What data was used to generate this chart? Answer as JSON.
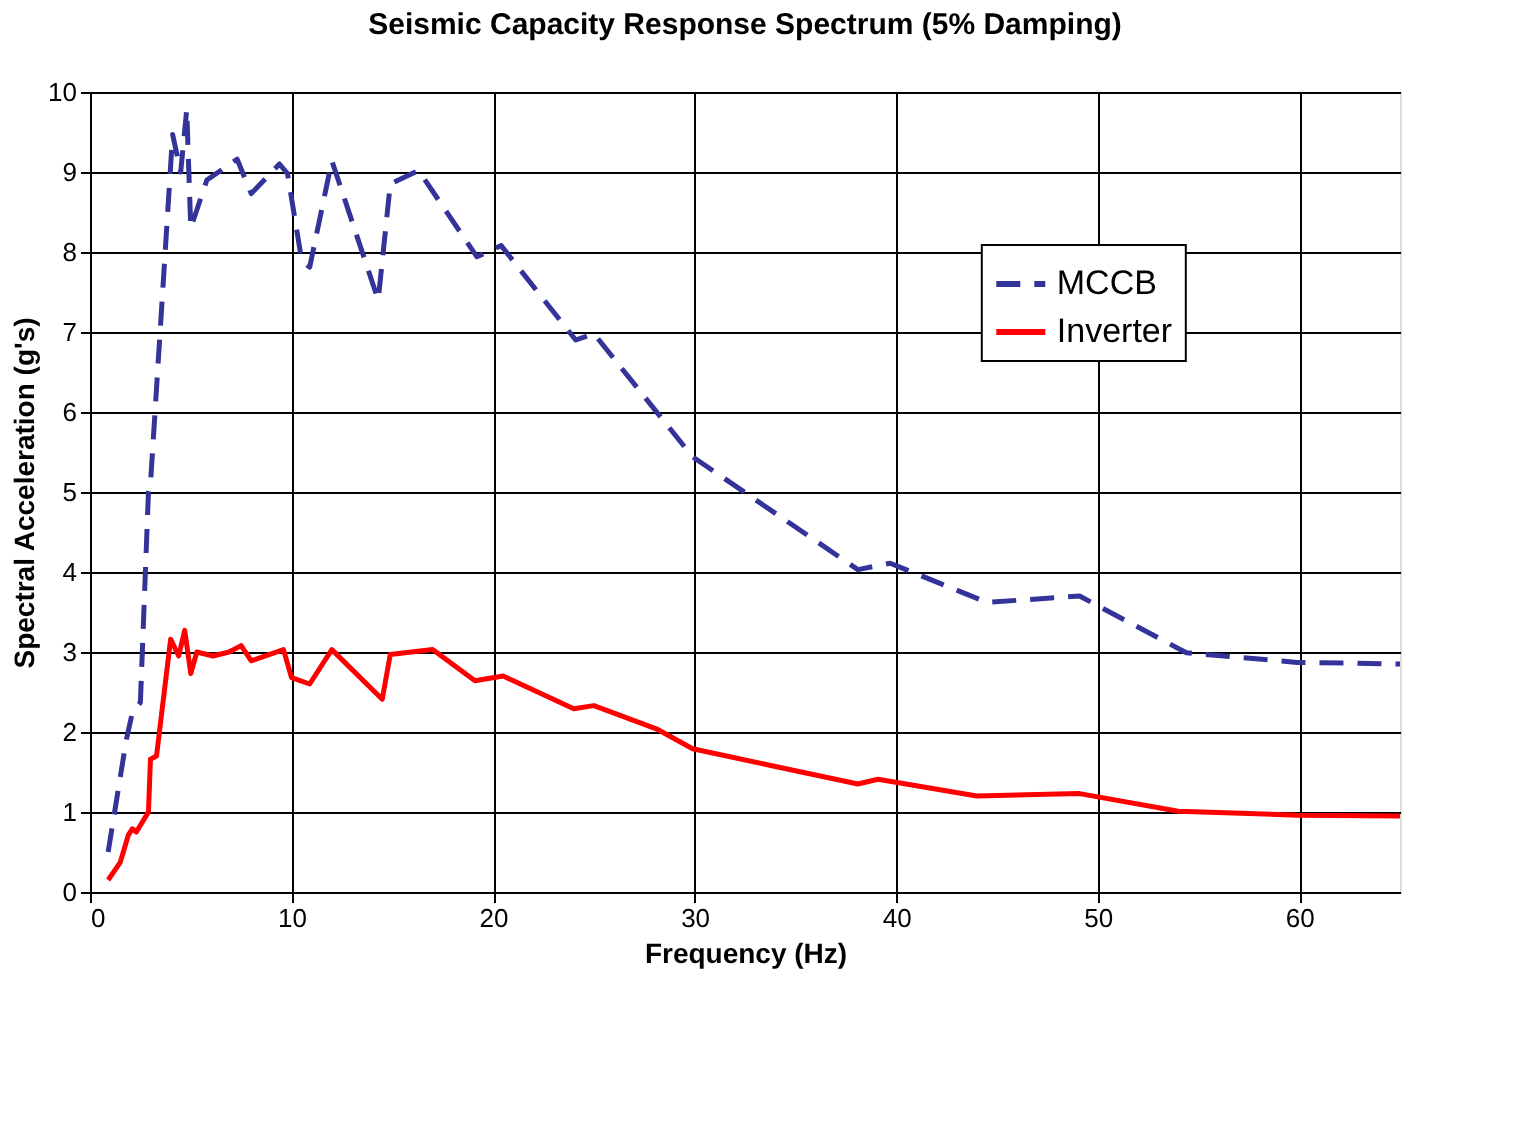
{
  "chart_data": {
    "type": "line",
    "title": "Seismic Capacity Response Spectrum (5% Damping)",
    "xlabel": "Frequency (Hz)",
    "ylabel": "Spectral Acceleration (g's)",
    "xlim": [
      0,
      65
    ],
    "xticks": [
      0,
      10,
      20,
      30,
      40,
      50,
      60
    ],
    "ylim": [
      0,
      10
    ],
    "yticks": [
      0,
      1,
      2,
      3,
      4,
      5,
      6,
      7,
      8,
      9,
      10
    ],
    "grid": true,
    "legend": "right",
    "marker": "none",
    "series": [
      {
        "name": "MCCB",
        "color": "#333399",
        "line_style": "dashed",
        "x": [
          0.9,
          1.8,
          2.1,
          2.5,
          2.9,
          3.0,
          4.1,
          4.5,
          4.8,
          5.0,
          5.8,
          7.3,
          8.0,
          9.4,
          9.8,
          10.5,
          10.9,
          12.0,
          14.3,
          14.9,
          16.3,
          19.2,
          20.4,
          24.1,
          25.0,
          29.9,
          38.1,
          39.7,
          44.5,
          49.1,
          54.4,
          59.9,
          65
        ],
        "values": [
          0.5,
          1.9,
          2.24,
          2.37,
          5.0,
          5.1,
          9.47,
          9.0,
          9.78,
          8.3,
          8.9,
          9.16,
          8.73,
          9.1,
          8.98,
          7.9,
          7.81,
          9.14,
          7.4,
          8.85,
          9.02,
          7.94,
          8.08,
          6.9,
          6.98,
          5.44,
          4.03,
          4.11,
          3.62,
          3.7,
          2.99,
          2.87,
          2.85
        ]
      },
      {
        "name": "Inverter",
        "color": "#ff0000",
        "line_style": "solid",
        "x": [
          0.9,
          1.5,
          1.9,
          2.1,
          2.3,
          2.9,
          3.0,
          3.3,
          4.0,
          4.4,
          4.7,
          5.0,
          5.3,
          6.1,
          6.9,
          7.5,
          8.0,
          9.6,
          10.0,
          10.9,
          12.0,
          14.5,
          14.9,
          17.0,
          19.1,
          20.5,
          24.0,
          25.0,
          28.1,
          29.9,
          38.1,
          39.1,
          44.0,
          49.1,
          54.0,
          59.9,
          65
        ],
        "values": [
          0.15,
          0.37,
          0.71,
          0.79,
          0.75,
          1.0,
          1.66,
          1.7,
          3.16,
          2.95,
          3.27,
          2.73,
          3.0,
          2.95,
          3.0,
          3.08,
          2.89,
          3.03,
          2.68,
          2.6,
          3.03,
          2.41,
          2.97,
          3.03,
          2.64,
          2.7,
          2.29,
          2.33,
          2.04,
          1.79,
          1.35,
          1.41,
          1.2,
          1.23,
          1.01,
          0.96,
          0.95
        ]
      }
    ]
  }
}
